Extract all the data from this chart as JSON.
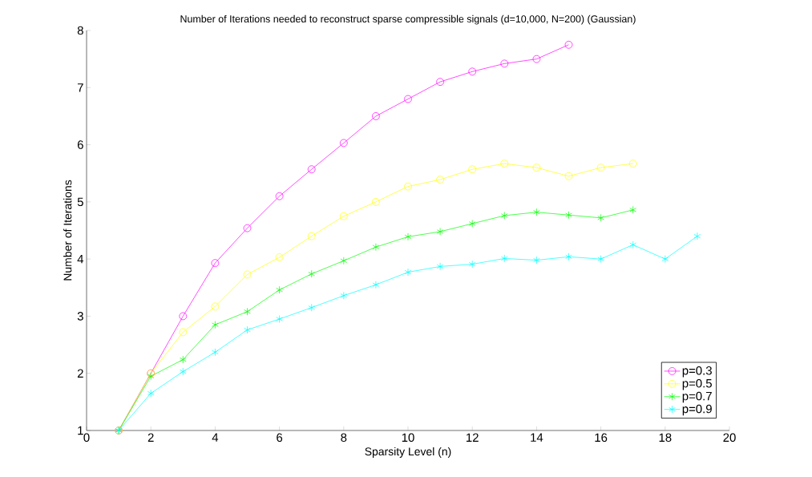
{
  "chart_data": {
    "type": "line",
    "title": "Number of Iterations needed to reconstruct sparse compressible signals (d=10,000, N=200) (Gaussian)",
    "xlabel": "Sparsity Level (n)",
    "ylabel": "Number of Iterations",
    "xlim": [
      0,
      20
    ],
    "xticks": [
      0,
      2,
      4,
      6,
      8,
      10,
      12,
      14,
      16,
      18,
      20
    ],
    "ylim": [
      1,
      8
    ],
    "yticks": [
      1,
      2,
      3,
      4,
      5,
      6,
      7,
      8
    ],
    "legend": "bottom right",
    "series": [
      {
        "name": "p=0.3",
        "color": "#ff00ff",
        "marker": "circle",
        "x": [
          1,
          2,
          3,
          4,
          5,
          6,
          7,
          8,
          9,
          10,
          11,
          12,
          13,
          14,
          15
        ],
        "values": [
          1,
          2,
          3.0,
          3.93,
          4.54,
          5.1,
          5.57,
          6.03,
          6.5,
          6.8,
          7.1,
          7.28,
          7.42,
          7.5,
          7.75
        ]
      },
      {
        "name": "p=0.5",
        "color": "#ffff00",
        "marker": "circle",
        "x": [
          1,
          2,
          3,
          4,
          5,
          6,
          7,
          8,
          9,
          10,
          11,
          12,
          13,
          14,
          15,
          16,
          17
        ],
        "values": [
          1,
          2,
          2.72,
          3.17,
          3.73,
          4.03,
          4.4,
          4.75,
          5.0,
          5.27,
          5.39,
          5.57,
          5.67,
          5.6,
          5.45,
          5.6,
          5.67
        ]
      },
      {
        "name": "p=0.7",
        "color": "#00ff00",
        "marker": "cross",
        "x": [
          1,
          2,
          3,
          4,
          5,
          6,
          7,
          8,
          9,
          10,
          11,
          12,
          13,
          14,
          15,
          16,
          17
        ],
        "values": [
          1,
          1.95,
          2.24,
          2.85,
          3.08,
          3.46,
          3.74,
          3.97,
          4.21,
          4.39,
          4.48,
          4.62,
          4.76,
          4.82,
          4.77,
          4.72,
          4.86
        ]
      },
      {
        "name": "p=0.9",
        "color": "#00ffff",
        "marker": "cross",
        "x": [
          1,
          2,
          3,
          4,
          5,
          6,
          7,
          8,
          9,
          10,
          11,
          12,
          13,
          14,
          15,
          16,
          17,
          18,
          19
        ],
        "values": [
          1,
          1.65,
          2.03,
          2.37,
          2.76,
          2.95,
          3.15,
          3.36,
          3.55,
          3.77,
          3.87,
          3.91,
          4.01,
          3.98,
          4.04,
          4.0,
          4.25,
          4.0,
          4.4
        ]
      }
    ]
  }
}
